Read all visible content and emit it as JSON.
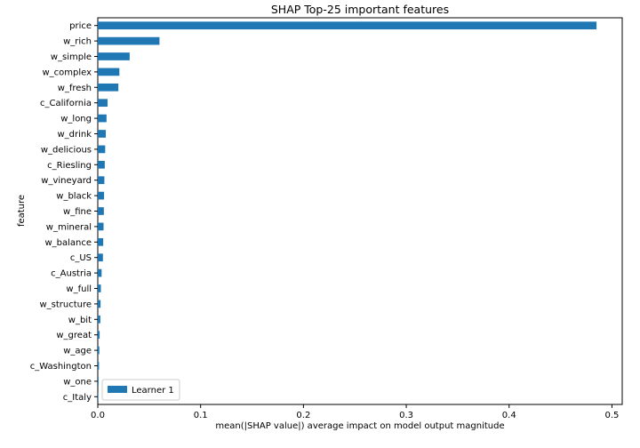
{
  "chart_data": {
    "type": "bar",
    "orientation": "horizontal",
    "title": "SHAP Top-25 important features",
    "xlabel": "mean(|SHAP value|) average impact on model output magnitude",
    "ylabel": "feature",
    "xlim": [
      0,
      0.51
    ],
    "xticks": [
      0,
      0.1,
      0.2,
      0.3,
      0.4,
      0.5
    ],
    "xtick_labels": [
      "0.0",
      "0.1",
      "0.2",
      "0.3",
      "0.4",
      "0.5"
    ],
    "grid": false,
    "legend_position": "lower-left",
    "categories": [
      "price",
      "w_rich",
      "w_simple",
      "w_complex",
      "w_fresh",
      "c_California",
      "w_long",
      "w_drink",
      "w_delicious",
      "c_Riesling",
      "w_vineyard",
      "w_black",
      "w_fine",
      "w_mineral",
      "w_balance",
      "c_US",
      "c_Austria",
      "w_full",
      "w_structure",
      "w_bit",
      "w_great",
      "w_age",
      "c_Washington",
      "w_one",
      "c_Italy"
    ],
    "series": [
      {
        "name": "Learner 1",
        "color": "#1f77b4",
        "values": [
          0.485,
          0.06,
          0.031,
          0.021,
          0.02,
          0.0095,
          0.0085,
          0.0078,
          0.0072,
          0.0068,
          0.0064,
          0.0061,
          0.0059,
          0.0056,
          0.0053,
          0.005,
          0.0037,
          0.003,
          0.0027,
          0.0025,
          0.0018,
          0.0015,
          0.0012,
          0.0008,
          0.0006
        ]
      }
    ]
  }
}
